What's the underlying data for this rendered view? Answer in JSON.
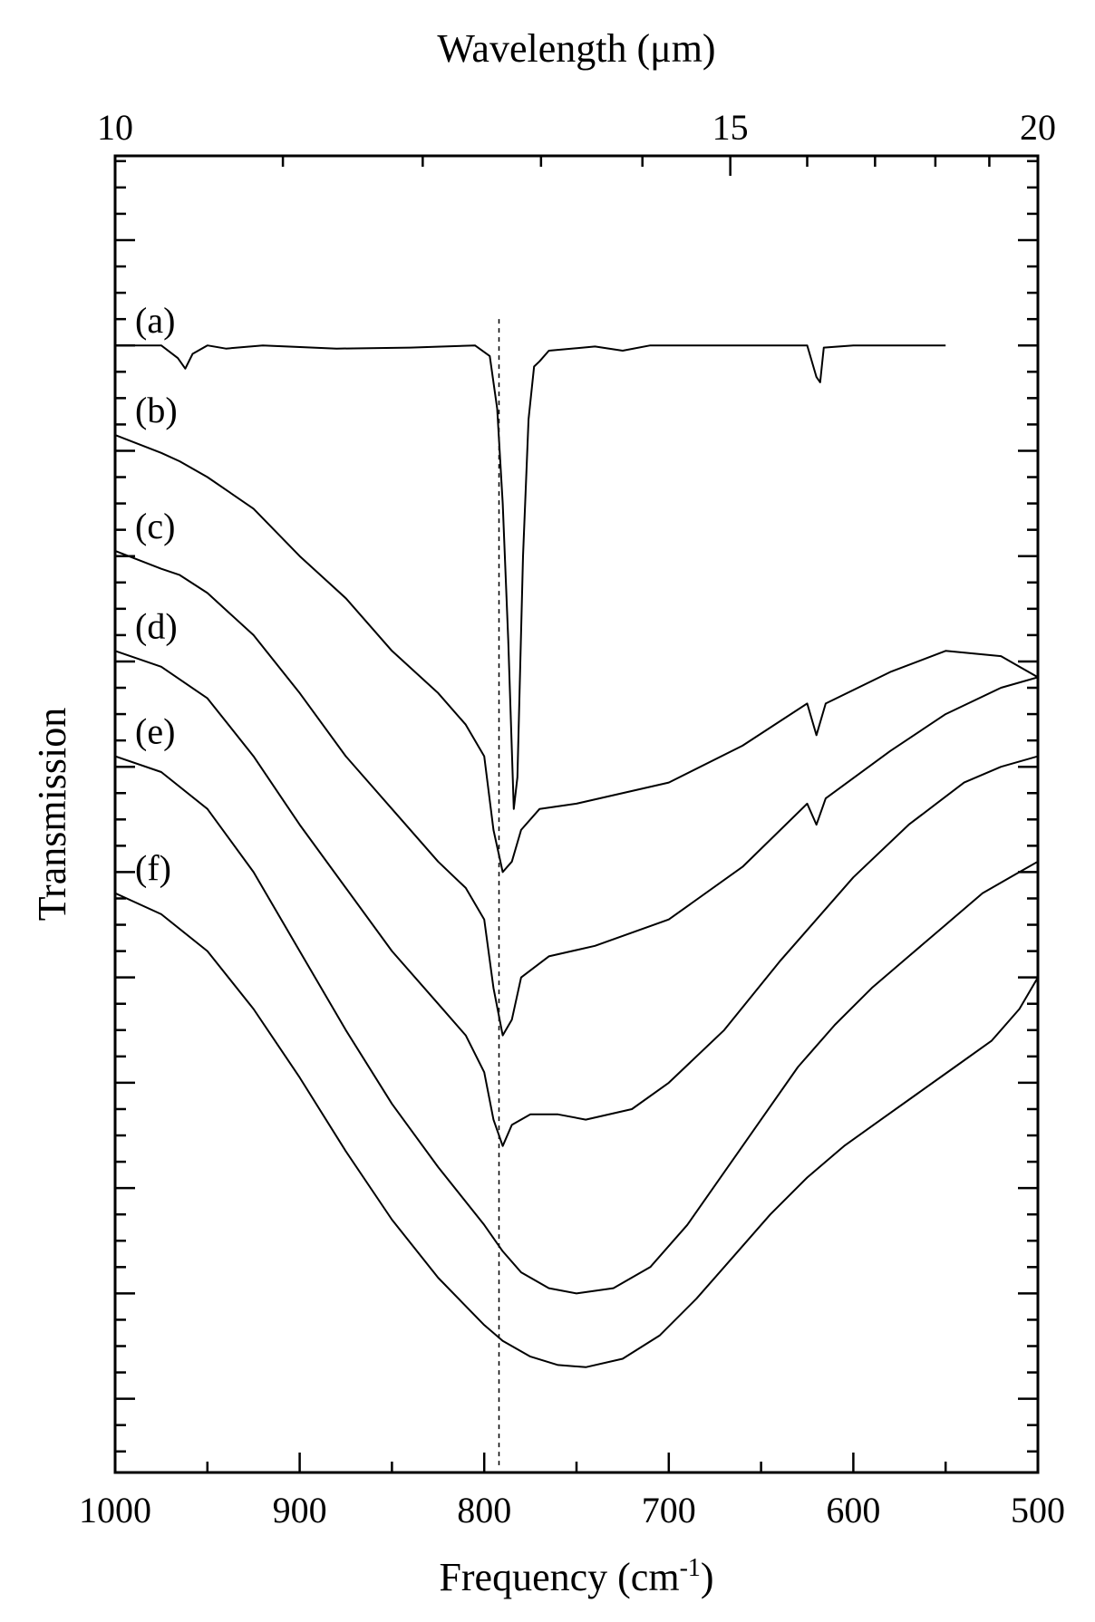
{
  "chart_data": {
    "type": "line",
    "xlabel_bottom": "Frequency (cm",
    "xlabel_bottom_sup": "-1",
    "xlabel_bottom_close": ")",
    "xlabel_top": "Wavelength (μm)",
    "ylabel": "Transmission",
    "xlim": [
      1000,
      500
    ],
    "bottom_ticks": [
      "1000",
      "900",
      "800",
      "700",
      "600",
      "500"
    ],
    "top_ticks": [
      "10",
      "15",
      "20"
    ],
    "top_range_um": [
      10,
      20
    ],
    "y_scale": "offset traces, no y tick labels",
    "reference_line": {
      "x": 792,
      "style": "dashed"
    },
    "series": [
      {
        "name": "(a)",
        "offset": 0.0,
        "depth": 0.0,
        "center": 750,
        "width": 170,
        "points": [
          [
            1000,
            8.0
          ],
          [
            975,
            8.0
          ],
          [
            966,
            7.88
          ],
          [
            962,
            7.78
          ],
          [
            958,
            7.92
          ],
          [
            950,
            8.0
          ],
          [
            940,
            7.97
          ],
          [
            920,
            8.0
          ],
          [
            880,
            7.97
          ],
          [
            840,
            7.98
          ],
          [
            805,
            8.0
          ],
          [
            797,
            7.9
          ],
          [
            793,
            7.4
          ],
          [
            790,
            6.5
          ],
          [
            787,
            5.2
          ],
          [
            784,
            3.6
          ],
          [
            782,
            3.9
          ],
          [
            779,
            6.0
          ],
          [
            776,
            7.3
          ],
          [
            773,
            7.8
          ],
          [
            770,
            7.85
          ],
          [
            765,
            7.95
          ],
          [
            740,
            7.99
          ],
          [
            725,
            7.95
          ],
          [
            710,
            8.0
          ],
          [
            625,
            8.0
          ],
          [
            620,
            7.7
          ],
          [
            618,
            7.65
          ],
          [
            616,
            7.98
          ],
          [
            600,
            8.0
          ],
          [
            550,
            8.0
          ]
        ]
      },
      {
        "name": "(b)",
        "points": [
          [
            1000,
            7.15
          ],
          [
            975,
            6.98
          ],
          [
            965,
            6.9
          ],
          [
            950,
            6.75
          ],
          [
            925,
            6.45
          ],
          [
            900,
            6.0
          ],
          [
            875,
            5.6
          ],
          [
            850,
            5.1
          ],
          [
            825,
            4.7
          ],
          [
            810,
            4.4
          ],
          [
            800,
            4.1
          ],
          [
            795,
            3.4
          ],
          [
            790,
            3.0
          ],
          [
            785,
            3.1
          ],
          [
            780,
            3.4
          ],
          [
            770,
            3.6
          ],
          [
            750,
            3.65
          ],
          [
            700,
            3.85
          ],
          [
            660,
            4.2
          ],
          [
            625,
            4.6
          ],
          [
            620,
            4.3
          ],
          [
            615,
            4.6
          ],
          [
            580,
            4.9
          ],
          [
            550,
            5.1
          ],
          [
            520,
            5.05
          ],
          [
            510,
            4.95
          ],
          [
            500,
            4.85
          ]
        ]
      },
      {
        "name": "(c)",
        "points": [
          [
            1000,
            6.05
          ],
          [
            975,
            5.88
          ],
          [
            965,
            5.82
          ],
          [
            950,
            5.65
          ],
          [
            925,
            5.25
          ],
          [
            900,
            4.7
          ],
          [
            875,
            4.1
          ],
          [
            850,
            3.6
          ],
          [
            825,
            3.1
          ],
          [
            810,
            2.85
          ],
          [
            800,
            2.55
          ],
          [
            795,
            1.9
          ],
          [
            790,
            1.45
          ],
          [
            785,
            1.6
          ],
          [
            780,
            2.0
          ],
          [
            765,
            2.2
          ],
          [
            740,
            2.3
          ],
          [
            700,
            2.55
          ],
          [
            660,
            3.05
          ],
          [
            625,
            3.65
          ],
          [
            620,
            3.45
          ],
          [
            615,
            3.7
          ],
          [
            580,
            4.15
          ],
          [
            550,
            4.5
          ],
          [
            520,
            4.75
          ],
          [
            500,
            4.85
          ]
        ]
      },
      {
        "name": "(d)",
        "points": [
          [
            1000,
            5.1
          ],
          [
            975,
            4.95
          ],
          [
            950,
            4.65
          ],
          [
            925,
            4.1
          ],
          [
            900,
            3.45
          ],
          [
            875,
            2.85
          ],
          [
            850,
            2.25
          ],
          [
            825,
            1.75
          ],
          [
            810,
            1.45
          ],
          [
            800,
            1.1
          ],
          [
            795,
            0.65
          ],
          [
            790,
            0.4
          ],
          [
            785,
            0.6
          ],
          [
            775,
            0.7
          ],
          [
            760,
            0.7
          ],
          [
            745,
            0.65
          ],
          [
            720,
            0.75
          ],
          [
            700,
            1.0
          ],
          [
            670,
            1.5
          ],
          [
            640,
            2.15
          ],
          [
            620,
            2.55
          ],
          [
            600,
            2.95
          ],
          [
            570,
            3.45
          ],
          [
            540,
            3.85
          ],
          [
            520,
            4.0
          ],
          [
            500,
            4.1
          ]
        ]
      },
      {
        "name": "(e)",
        "points": [
          [
            1000,
            4.1
          ],
          [
            975,
            3.95
          ],
          [
            950,
            3.6
          ],
          [
            925,
            3.0
          ],
          [
            900,
            2.25
          ],
          [
            875,
            1.5
          ],
          [
            850,
            0.8
          ],
          [
            825,
            0.2
          ],
          [
            800,
            -0.35
          ],
          [
            790,
            -0.6
          ],
          [
            780,
            -0.8
          ],
          [
            765,
            -0.95
          ],
          [
            750,
            -1.0
          ],
          [
            730,
            -0.95
          ],
          [
            710,
            -0.75
          ],
          [
            690,
            -0.35
          ],
          [
            670,
            0.15
          ],
          [
            650,
            0.65
          ],
          [
            630,
            1.15
          ],
          [
            610,
            1.55
          ],
          [
            590,
            1.9
          ],
          [
            570,
            2.2
          ],
          [
            550,
            2.5
          ],
          [
            530,
            2.8
          ],
          [
            510,
            3.0
          ],
          [
            500,
            3.1
          ]
        ]
      },
      {
        "name": "(f)",
        "points": [
          [
            1000,
            2.8
          ],
          [
            975,
            2.6
          ],
          [
            950,
            2.25
          ],
          [
            925,
            1.7
          ],
          [
            900,
            1.05
          ],
          [
            875,
            0.35
          ],
          [
            850,
            -0.3
          ],
          [
            825,
            -0.85
          ],
          [
            800,
            -1.3
          ],
          [
            790,
            -1.45
          ],
          [
            775,
            -1.6
          ],
          [
            760,
            -1.68
          ],
          [
            745,
            -1.7
          ],
          [
            725,
            -1.62
          ],
          [
            705,
            -1.4
          ],
          [
            685,
            -1.05
          ],
          [
            665,
            -0.65
          ],
          [
            645,
            -0.25
          ],
          [
            625,
            0.1
          ],
          [
            605,
            0.4
          ],
          [
            585,
            0.65
          ],
          [
            565,
            0.9
          ],
          [
            545,
            1.15
          ],
          [
            525,
            1.4
          ],
          [
            510,
            1.7
          ],
          [
            500,
            2.0
          ]
        ]
      }
    ]
  }
}
